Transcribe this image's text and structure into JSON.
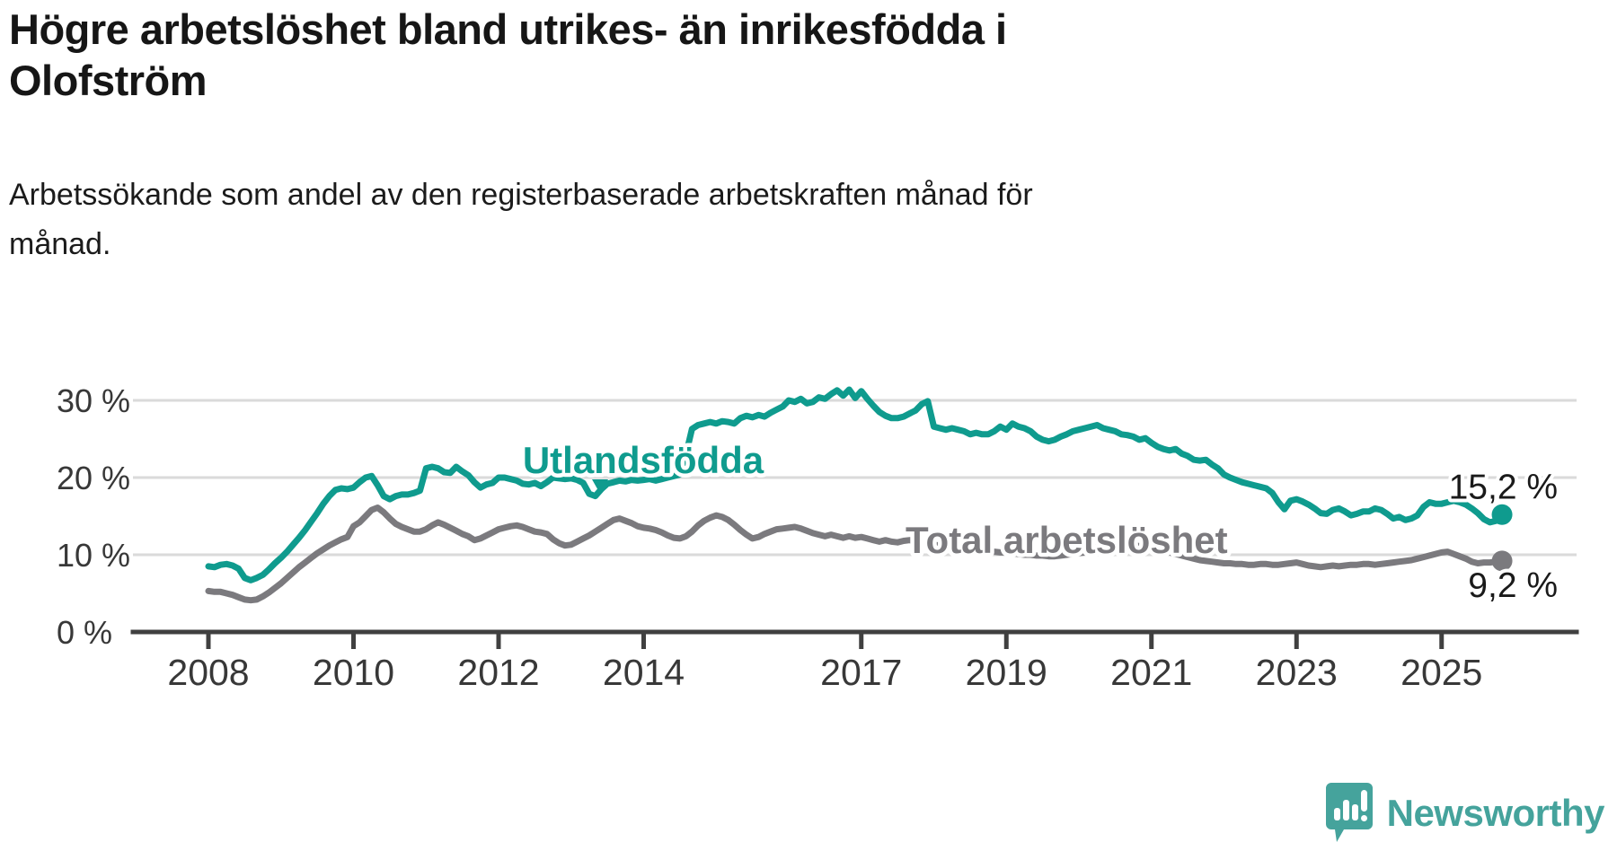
{
  "title": {
    "line1": "Högre arbetslöshet bland utrikes- än inrikesfödda i",
    "line2": "Olofström"
  },
  "subtitle": {
    "line1": "Arbetssökande som andel av den registerbaserade arbetskraften månad för",
    "line2": "månad."
  },
  "branding": {
    "logo_text": "Newsworthy",
    "logo_color": "#45A39C"
  },
  "colors": {
    "foreign_born": "#0F9B8E",
    "total": "#7B7A7E",
    "grid": "#DADADA",
    "axis": "#404040",
    "tick_text": "#383838",
    "end_label_text": "#1a1a1a"
  },
  "chart_data": {
    "type": "line",
    "unit": "%",
    "frequency": "monthly",
    "x_start": "2008-01",
    "x_end": "2025-11",
    "ylim": [
      0,
      33
    ],
    "grid": "horizontal",
    "x_tick_labels": [
      "2008",
      "2010",
      "2012",
      "2014",
      "2017",
      "2019",
      "2021",
      "2023",
      "2025"
    ],
    "x_tick_years": [
      2008,
      2010,
      2012,
      2014,
      2017,
      2019,
      2021,
      2023,
      2025
    ],
    "y_ticks": [
      {
        "value": 0,
        "label": "0 %"
      },
      {
        "value": 10,
        "label": "10 %"
      },
      {
        "value": 20,
        "label": "20 %"
      },
      {
        "value": 30,
        "label": "30 %"
      }
    ],
    "series": [
      {
        "name": "Utlandsfödda",
        "color": "#0F9B8E",
        "end_label": "15,2 %",
        "end_value": 15.2,
        "values": [
          8.5,
          8.4,
          8.7,
          8.8,
          8.6,
          8.2,
          7.0,
          6.7,
          7.0,
          7.4,
          8.1,
          8.9,
          9.6,
          10.4,
          11.3,
          12.2,
          13.2,
          14.3,
          15.4,
          16.6,
          17.6,
          18.4,
          18.6,
          18.5,
          18.7,
          19.4,
          20.0,
          20.2,
          19.0,
          17.6,
          17.2,
          17.6,
          17.8,
          17.8,
          18.0,
          18.3,
          21.2,
          21.4,
          21.2,
          20.7,
          20.6,
          21.4,
          20.8,
          20.3,
          19.4,
          18.7,
          19.1,
          19.3,
          20.0,
          20.0,
          19.8,
          19.6,
          19.2,
          19.1,
          19.3,
          18.9,
          19.4,
          20.0,
          19.9,
          19.8,
          19.9,
          19.7,
          19.3,
          17.9,
          17.6,
          18.5,
          19.2,
          19.4,
          19.6,
          19.5,
          19.7,
          19.6,
          19.7,
          19.8,
          19.6,
          19.8,
          20.0,
          20.2,
          20.4,
          23.0,
          26.3,
          26.8,
          27.0,
          27.2,
          27.0,
          27.3,
          27.2,
          27.0,
          27.7,
          28.0,
          27.8,
          28.1,
          27.9,
          28.4,
          28.8,
          29.2,
          30.0,
          29.8,
          30.2,
          29.6,
          29.8,
          30.4,
          30.2,
          30.8,
          31.3,
          30.6,
          31.4,
          30.3,
          31.2,
          30.2,
          29.3,
          28.5,
          28.0,
          27.7,
          27.7,
          27.9,
          28.3,
          28.7,
          29.5,
          29.9,
          26.6,
          26.4,
          26.2,
          26.4,
          26.2,
          26.0,
          25.6,
          25.8,
          25.6,
          25.6,
          26.0,
          26.6,
          26.2,
          27.0,
          26.6,
          26.4,
          26.0,
          25.3,
          24.9,
          24.7,
          24.9,
          25.3,
          25.6,
          26.0,
          26.2,
          26.4,
          26.6,
          26.8,
          26.4,
          26.2,
          26.0,
          25.6,
          25.5,
          25.3,
          24.9,
          25.1,
          24.5,
          24.0,
          23.7,
          23.5,
          23.7,
          23.1,
          22.8,
          22.3,
          22.2,
          22.3,
          21.7,
          21.2,
          20.4,
          20.0,
          19.7,
          19.4,
          19.2,
          19.0,
          18.8,
          18.6,
          18.0,
          16.8,
          15.9,
          17.0,
          17.2,
          16.9,
          16.5,
          16.0,
          15.4,
          15.3,
          15.8,
          16.0,
          15.6,
          15.1,
          15.3,
          15.6,
          15.6,
          16.0,
          15.8,
          15.3,
          14.7,
          14.9,
          14.5,
          14.7,
          15.1,
          16.2,
          16.8,
          16.6,
          16.6,
          16.8,
          17.0,
          16.8,
          16.5,
          16.0,
          15.4,
          14.6,
          14.2,
          14.4,
          15.2
        ]
      },
      {
        "name": "Total arbetslöshet",
        "color": "#7B7A7E",
        "end_label": "9,2 %",
        "end_value": 9.2,
        "values": [
          5.3,
          5.2,
          5.2,
          5.0,
          4.8,
          4.5,
          4.2,
          4.1,
          4.2,
          4.6,
          5.1,
          5.7,
          6.3,
          7.0,
          7.7,
          8.4,
          9.0,
          9.6,
          10.2,
          10.7,
          11.2,
          11.6,
          12.0,
          12.3,
          13.7,
          14.2,
          15.0,
          15.8,
          16.1,
          15.5,
          14.7,
          14.0,
          13.6,
          13.3,
          13.0,
          13.0,
          13.3,
          13.8,
          14.2,
          13.9,
          13.5,
          13.1,
          12.7,
          12.4,
          11.9,
          12.1,
          12.5,
          12.9,
          13.3,
          13.5,
          13.7,
          13.8,
          13.6,
          13.3,
          13.0,
          12.9,
          12.7,
          12.0,
          11.5,
          11.2,
          11.3,
          11.7,
          12.1,
          12.5,
          13.0,
          13.5,
          14.0,
          14.5,
          14.7,
          14.4,
          14.1,
          13.7,
          13.5,
          13.4,
          13.2,
          12.9,
          12.5,
          12.2,
          12.1,
          12.4,
          13.0,
          13.8,
          14.4,
          14.8,
          15.1,
          14.9,
          14.5,
          13.9,
          13.2,
          12.6,
          12.1,
          12.3,
          12.7,
          13.0,
          13.3,
          13.4,
          13.5,
          13.6,
          13.4,
          13.1,
          12.8,
          12.6,
          12.4,
          12.6,
          12.4,
          12.2,
          12.4,
          12.2,
          12.3,
          12.1,
          11.9,
          11.7,
          11.9,
          11.7,
          11.6,
          11.8,
          11.9,
          11.7,
          11.5,
          11.4,
          11.3,
          11.2,
          11.1,
          11.0,
          10.9,
          10.8,
          10.7,
          10.6,
          10.5,
          10.4,
          10.4,
          10.3,
          10.3,
          10.2,
          10.1,
          10.0,
          10.0,
          9.9,
          9.9,
          9.8,
          9.8,
          9.9,
          10.0,
          10.1,
          10.2,
          10.3,
          10.6,
          11.0,
          11.3,
          11.5,
          11.6,
          11.5,
          11.4,
          11.3,
          11.1,
          11.0,
          10.9,
          10.7,
          10.5,
          10.3,
          10.1,
          9.9,
          9.7,
          9.5,
          9.3,
          9.2,
          9.1,
          9.0,
          8.9,
          8.9,
          8.8,
          8.8,
          8.7,
          8.7,
          8.8,
          8.8,
          8.7,
          8.7,
          8.8,
          8.9,
          9.0,
          8.8,
          8.6,
          8.5,
          8.4,
          8.5,
          8.6,
          8.5,
          8.6,
          8.7,
          8.7,
          8.8,
          8.8,
          8.7,
          8.8,
          8.9,
          9.0,
          9.1,
          9.2,
          9.3,
          9.5,
          9.7,
          9.9,
          10.1,
          10.3,
          10.4,
          10.1,
          9.8,
          9.5,
          9.1,
          8.9,
          9.0,
          9.0,
          9.1,
          9.2
        ]
      }
    ]
  }
}
